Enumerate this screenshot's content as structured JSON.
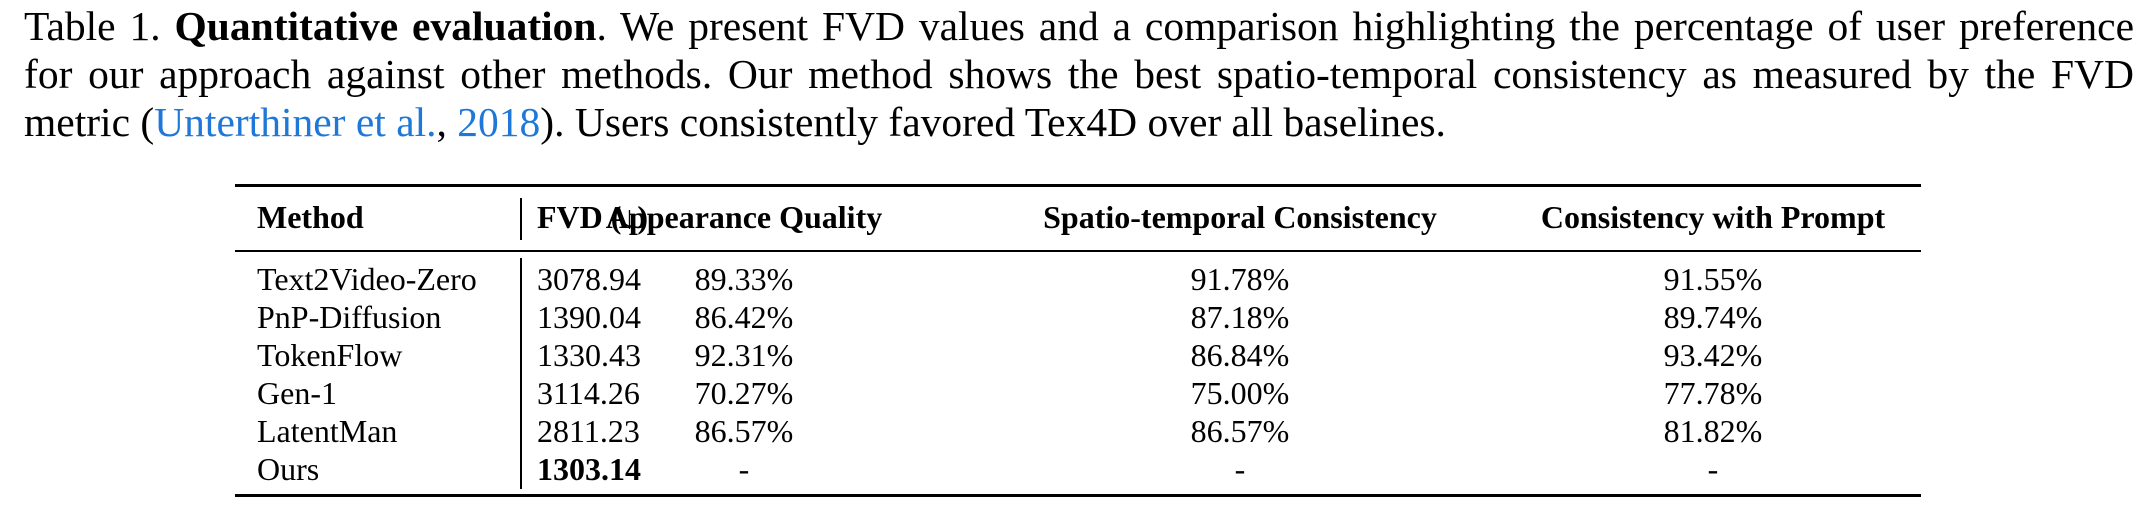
{
  "caption": {
    "label": "Table 1.",
    "title": "Quantitative evaluation",
    "text_part1": ". We present FVD values and a comparison highlighting the percentage of user preference for our approach against other methods. Our method shows the best spatio-temporal consistency as measured by the FVD metric (",
    "cite_author": "Unterthiner et al.",
    "cite_sep": ", ",
    "cite_year": "2018",
    "text_part2": "). Users consistently favored Tex4D over all baselines."
  },
  "table": {
    "headers": {
      "method": "Method",
      "fvd": "FVD (↓)",
      "appearance": "Appearance Quality",
      "spatio": "Spatio-temporal Consistency",
      "prompt": "Consistency with Prompt"
    },
    "rows": [
      {
        "method": "Text2Video-Zero",
        "fvd": "3078.94",
        "appearance": "89.33%",
        "spatio": "91.78%",
        "prompt": "91.55%"
      },
      {
        "method": "PnP-Diffusion",
        "fvd": "1390.04",
        "appearance": "86.42%",
        "spatio": "87.18%",
        "prompt": "89.74%"
      },
      {
        "method": "TokenFlow",
        "fvd": "1330.43",
        "appearance": "92.31%",
        "spatio": "86.84%",
        "prompt": "93.42%"
      },
      {
        "method": "Gen-1",
        "fvd": "3114.26",
        "appearance": "70.27%",
        "spatio": "75.00%",
        "prompt": "77.78%"
      },
      {
        "method": "LatentMan",
        "fvd": "2811.23",
        "appearance": "86.57%",
        "spatio": "86.57%",
        "prompt": "81.82%"
      },
      {
        "method": "Ours",
        "fvd": "1303.14",
        "appearance": "-",
        "spatio": "-",
        "prompt": "-"
      }
    ]
  }
}
